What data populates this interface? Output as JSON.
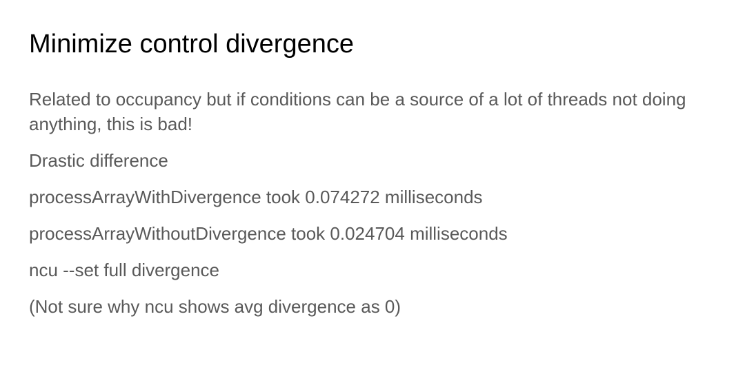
{
  "slide": {
    "title": "Minimize control divergence",
    "paragraphs": [
      "Related to occupancy but if conditions can be a source of a lot of threads not doing anything, this is bad!",
      "Drastic difference",
      "processArrayWithDivergence took 0.074272 milliseconds",
      "processArrayWithoutDivergence took 0.024704 milliseconds",
      "ncu --set full divergence",
      "(Not sure why ncu shows avg divergence as 0)"
    ]
  },
  "colors": {
    "title": "#000000",
    "body_text": "#595959",
    "background": "#ffffff"
  }
}
